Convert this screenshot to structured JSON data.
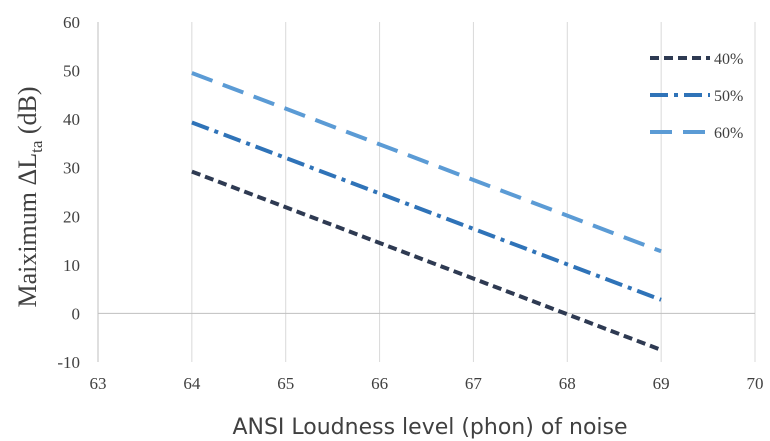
{
  "chart_data": {
    "type": "line",
    "xlabel": "ANSI Loudness level (phon) of noise",
    "ylabel": {
      "prefix": "Maiximum  ΔL",
      "subscript": "ta",
      "suffix": " (dB)"
    },
    "xlim": [
      63,
      70
    ],
    "ylim": [
      -10,
      60
    ],
    "x_ticks": [
      "63",
      "64",
      "65",
      "66",
      "67",
      "68",
      "69",
      "70"
    ],
    "y_ticks": [
      "-10",
      "0",
      "10",
      "20",
      "30",
      "40",
      "50",
      "60"
    ],
    "grid": "vertical",
    "legend_position": "top-right",
    "x": [
      64,
      69
    ],
    "series": [
      {
        "name": "40%",
        "values": [
          29.2,
          -7.5
        ],
        "color": "#2e3a52",
        "dash": "dash"
      },
      {
        "name": "50%",
        "values": [
          39.3,
          2.8
        ],
        "color": "#2f73b8",
        "dash": "dash-dot"
      },
      {
        "name": "60%",
        "values": [
          49.5,
          12.8
        ],
        "color": "#5b9bd5",
        "dash": "long-dash"
      }
    ]
  }
}
